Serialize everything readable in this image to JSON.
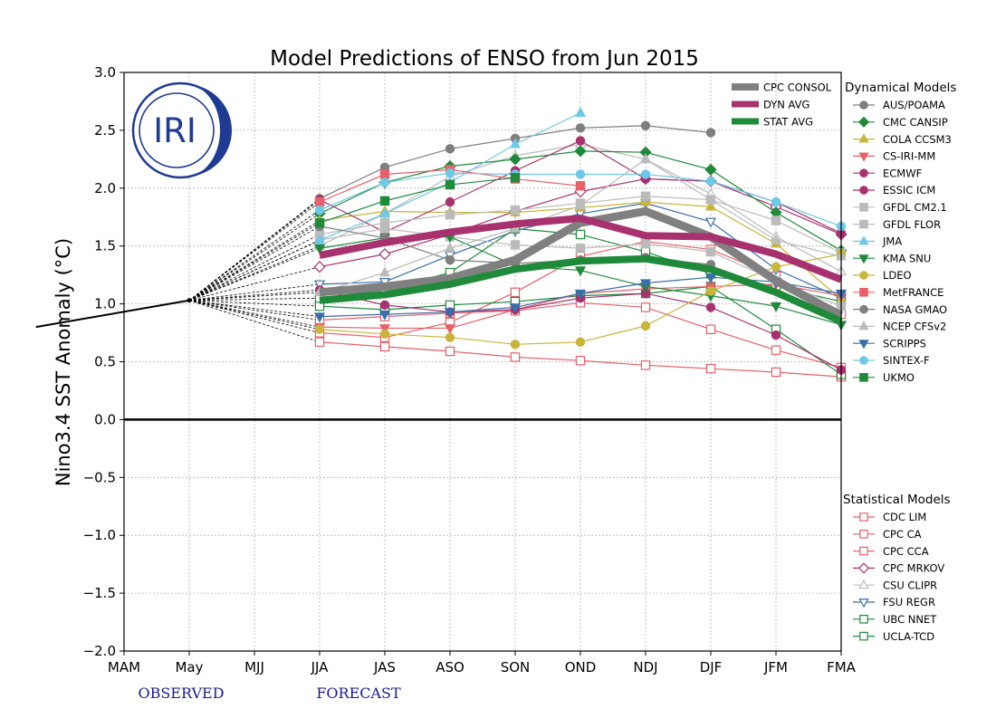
{
  "chart_data": {
    "type": "line",
    "title": "Model Predictions of ENSO from Jun 2015",
    "ylabel": "Nino3.4 SST Anomaly (°C)",
    "xlabel": "",
    "categories": [
      "MAM",
      "May",
      "MJJ",
      "JJA",
      "JAS",
      "ASO",
      "SON",
      "OND",
      "NDJ",
      "DJF",
      "JFM",
      "FMA"
    ],
    "ylim": [
      -2.0,
      3.0
    ],
    "yticks": [
      "3.0",
      "2.5",
      "2.0",
      "1.5",
      "1.0",
      "0.5",
      "0.0",
      "−0.5",
      "−1.0",
      "−1.5",
      "−2.0"
    ],
    "grid": true,
    "observed": {
      "label": "OBSERVED",
      "x": [
        -0.2,
        0,
        1
      ],
      "y": [
        0.8,
        0.8,
        1.03
      ]
    },
    "forecast_label": "FORECAST",
    "logo": {
      "text": "IRI",
      "color": "#1f3a93"
    },
    "consensus_legend_title": "",
    "consensus": [
      {
        "name": "CPC CONSOL",
        "color": "#808080",
        "width": 9,
        "values": [
          1.1,
          1.15,
          1.22,
          1.38,
          1.7,
          1.8,
          1.58,
          1.2,
          0.9
        ]
      },
      {
        "name": "DYN AVG",
        "color": "#a8326f",
        "width": 8,
        "values": [
          1.42,
          1.53,
          1.62,
          1.69,
          1.74,
          1.59,
          1.58,
          1.43,
          1.21
        ]
      },
      {
        "name": "STAT AVG",
        "color": "#1f8a3a",
        "width": 8,
        "values": [
          1.03,
          1.08,
          1.17,
          1.3,
          1.37,
          1.39,
          1.3,
          1.1,
          0.85
        ]
      }
    ],
    "dynamical_title": "Dynamical Models",
    "statistical_title": "Statistical Models",
    "dynamical": [
      {
        "name": "AUS/POAMA",
        "color": "#7f7f7f",
        "marker": "circle",
        "filled": true,
        "values": [
          1.91,
          2.18,
          2.34,
          2.43,
          2.52,
          2.54,
          2.48
        ]
      },
      {
        "name": "CMC CANSIP",
        "color": "#1f8a3a",
        "marker": "diamond",
        "filled": true,
        "values": [
          1.78,
          2.05,
          2.19,
          2.25,
          2.32,
          2.31,
          2.16,
          1.79,
          1.46
        ]
      },
      {
        "name": "COLA CCSM3",
        "color": "#c8b53a",
        "marker": "triangle-up",
        "filled": true,
        "values": [
          1.72,
          1.8,
          1.79,
          1.79,
          1.83,
          1.88,
          1.84,
          1.52,
          1.04
        ]
      },
      {
        "name": "CS-IRI-MM",
        "color": "#e8606a",
        "marker": "triangle-down",
        "filled": true,
        "values": [
          0.8,
          0.79,
          0.79,
          0.95,
          1.09,
          1.13,
          1.15,
          1.17,
          1.07
        ]
      },
      {
        "name": "ECMWF",
        "color": "#a8326f",
        "marker": "circle",
        "filled": true,
        "values": [
          1.12,
          0.99,
          0.93,
          0.95,
          1.05,
          1.09,
          0.97,
          0.73,
          0.43
        ]
      },
      {
        "name": "ESSIC ICM",
        "color": "#a8326f",
        "marker": "circle",
        "filled": true,
        "values": [
          1.9,
          1.62,
          1.88,
          2.15,
          2.41,
          2.08,
          2.06,
          1.88,
          1.61
        ]
      },
      {
        "name": "GFDL CM2.1",
        "color": "#bbbbbb",
        "marker": "square",
        "filled": true,
        "values": [
          1.6,
          1.7,
          1.77,
          1.81,
          1.87,
          1.93,
          1.9,
          1.72,
          1.44
        ]
      },
      {
        "name": "GFDL FLOR",
        "color": "#bbbbbb",
        "marker": "square",
        "filled": true,
        "values": [
          1.55,
          1.65,
          1.58,
          1.51,
          1.48,
          1.52,
          1.45,
          1.2,
          0.98
        ]
      },
      {
        "name": "JMA",
        "color": "#6ec8e8",
        "marker": "triangle-up",
        "filled": true,
        "values": [
          1.55,
          1.78,
          2.05,
          2.38,
          2.65
        ]
      },
      {
        "name": "KMA SNU",
        "color": "#1f8a3a",
        "marker": "triangle-down",
        "filled": true,
        "values": [
          1.48,
          1.57,
          1.58,
          1.33,
          1.29,
          1.15,
          1.07,
          0.98,
          0.82
        ]
      },
      {
        "name": "LDEO",
        "color": "#c8b53a",
        "marker": "circle",
        "filled": true,
        "values": [
          0.78,
          0.74,
          0.71,
          0.65,
          0.67,
          0.81,
          1.11,
          1.32,
          1.43
        ]
      },
      {
        "name": "MetFRANCE",
        "color": "#e8606a",
        "marker": "square",
        "filled": true,
        "values": [
          1.88,
          2.12,
          2.16,
          2.08,
          2.02
        ]
      },
      {
        "name": "NASA GMAO",
        "color": "#7f7f7f",
        "marker": "circle",
        "filled": true,
        "values": [
          1.67,
          1.57,
          1.38,
          1.35,
          1.38,
          1.4,
          1.34
        ]
      },
      {
        "name": "NCEP CFSv2",
        "color": "#bbbbbb",
        "marker": "triangle-up",
        "filled": true,
        "values": [
          1.1,
          1.27,
          1.48,
          1.65,
          1.85,
          2.25,
          1.9,
          1.55,
          1.41
        ]
      },
      {
        "name": "SCRIPPS",
        "color": "#3a6ea8",
        "marker": "triangle-down",
        "filled": true,
        "values": [
          0.89,
          0.91,
          0.93,
          0.97,
          1.09,
          1.18,
          1.23,
          1.19,
          1.09
        ]
      },
      {
        "name": "SINTEX-F",
        "color": "#6ec8e8",
        "marker": "circle",
        "filled": true,
        "values": [
          1.81,
          2.05,
          2.13,
          2.12,
          2.12,
          2.12,
          2.06,
          1.88,
          1.67
        ]
      },
      {
        "name": "UKMO",
        "color": "#1f8a3a",
        "marker": "square",
        "filled": true,
        "values": [
          1.7,
          1.89,
          2.03,
          2.09
        ]
      }
    ],
    "statistical": [
      {
        "name": "CDC LIM",
        "color": "#e8606a",
        "marker": "square",
        "filled": false,
        "values": [
          0.67,
          0.63,
          0.59,
          0.54,
          0.51,
          0.47,
          0.44,
          0.41,
          0.37
        ]
      },
      {
        "name": "CPC CA",
        "color": "#e8606a",
        "marker": "square",
        "filled": false,
        "values": [
          0.75,
          0.71,
          0.84,
          1.1,
          1.41,
          1.54,
          1.47,
          1.24,
          0.91
        ]
      },
      {
        "name": "CPC CCA",
        "color": "#e8606a",
        "marker": "square",
        "filled": false,
        "values": [
          0.86,
          0.89,
          0.92,
          0.94,
          1.01,
          0.97,
          0.78,
          0.6,
          0.45
        ]
      },
      {
        "name": "CPC MRKOV",
        "color": "#a8326f",
        "marker": "diamond",
        "filled": false,
        "values": [
          1.32,
          1.43,
          1.6,
          1.8,
          1.97,
          2.08,
          2.06,
          1.84,
          1.6
        ]
      },
      {
        "name": "CSU CLIPR",
        "color": "#bbbbbb",
        "marker": "triangle-up",
        "filled": false,
        "values": [
          1.5,
          1.78,
          2.1,
          2.28,
          2.38,
          2.25,
          1.95,
          1.58,
          1.28
        ]
      },
      {
        "name": "FSU REGR",
        "color": "#3a6ea8",
        "marker": "triangle-down",
        "filled": false,
        "values": [
          1.17,
          1.19,
          1.42,
          1.63,
          1.78,
          1.87,
          1.71,
          1.3,
          1.05
        ]
      },
      {
        "name": "UBC NNET",
        "color": "#1f8a3a",
        "marker": "square",
        "filled": false,
        "values": [
          0.98,
          0.95,
          0.99,
          1.02,
          1.07,
          1.09,
          1.15,
          0.78,
          0.39
        ]
      },
      {
        "name": "UCLA-TCD",
        "color": "#1f8a3a",
        "marker": "square",
        "filled": false,
        "values": [
          1.05,
          1.12,
          1.27,
          1.65,
          1.6,
          1.45,
          1.26,
          1.15,
          1.02
        ]
      }
    ]
  }
}
